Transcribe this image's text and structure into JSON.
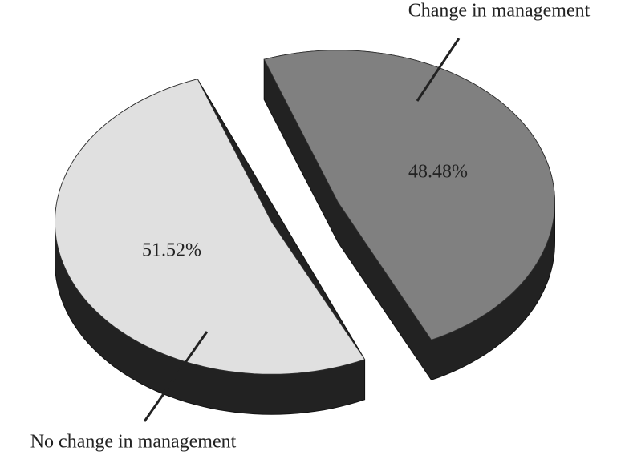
{
  "chart_data": {
    "type": "pie",
    "categories": [
      "Change in management",
      "No change in management"
    ],
    "values": [
      48.48,
      51.52
    ],
    "value_labels": [
      "48.48%",
      "51.52%"
    ],
    "colors": [
      "#808080",
      "#e0e0e0"
    ],
    "exploded": true,
    "three_d": true
  }
}
